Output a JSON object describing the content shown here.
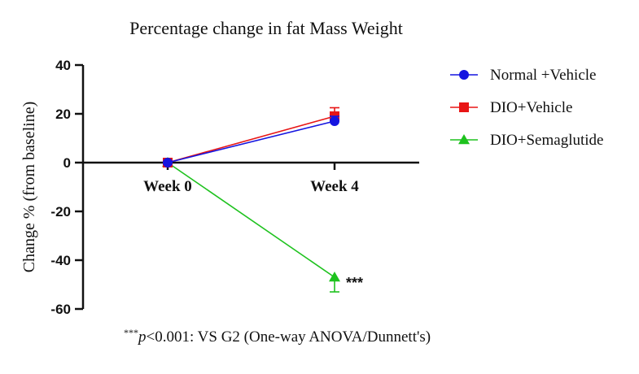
{
  "chart_data": {
    "type": "line",
    "title": "Percentage change in fat Mass Weight",
    "ylabel": "Change % (from baseline)",
    "xlabel": "",
    "categories": [
      "Week 0",
      "Week 4"
    ],
    "ylim": [
      -60,
      40
    ],
    "yticks": [
      "40",
      "20",
      "0",
      "-20",
      "-40",
      "-60"
    ],
    "legend_position": "right",
    "series": [
      {
        "name": "Normal +Vehicle",
        "values": [
          0,
          17
        ],
        "error": [
          0,
          2
        ],
        "color": "#1515e0",
        "marker": "circle"
      },
      {
        "name": "DIO+Vehicle",
        "values": [
          0,
          19
        ],
        "error": [
          0,
          3.5
        ],
        "color": "#e81515",
        "marker": "square"
      },
      {
        "name": "DIO+Semaglutide",
        "values": [
          0,
          -47
        ],
        "error": [
          0,
          6
        ],
        "color": "#1ec21e",
        "marker": "triangle"
      }
    ],
    "annotations": [
      {
        "text": "***",
        "category": "Week 4",
        "series": "DIO+Semaglutide"
      }
    ]
  },
  "footnote": {
    "stars": "***",
    "p": "p",
    "text": "<0.001: VS G2 (One-way ANOVA/Dunnett's)"
  }
}
